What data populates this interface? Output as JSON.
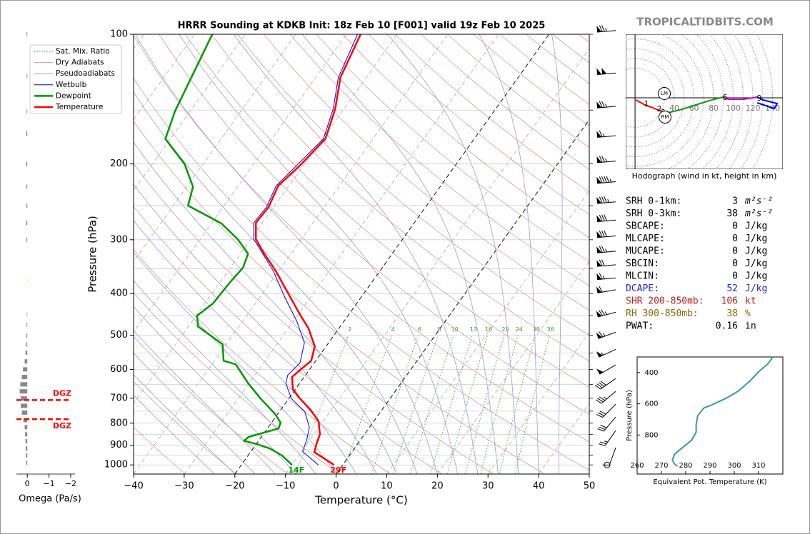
{
  "site": "TROPICALTIDBITS.COM",
  "chart_data": [
    {
      "type": "skewt",
      "title": "HRRR Sounding at KDKB Init: 18z Feb 10 [F001] valid 19z Feb 10 2025",
      "xlabel": "Temperature (°C)",
      "ylabel": "Pressure (hPa)",
      "xlim": [
        -40,
        50
      ],
      "xticks": [
        {
          "value": -40,
          "label": "−40"
        },
        {
          "value": -30,
          "label": "−30"
        },
        {
          "value": -20,
          "label": "−20"
        },
        {
          "value": -10,
          "label": "−10"
        },
        0,
        10,
        20,
        30,
        40,
        50
      ],
      "ylim": [
        1050,
        100
      ],
      "log_y": true,
      "yticks": [
        100,
        200,
        300,
        400,
        500,
        600,
        700,
        800,
        900,
        1000
      ],
      "ygrid": [
        100,
        150,
        200,
        250,
        300,
        350,
        400,
        450,
        500,
        550,
        600,
        650,
        700,
        750,
        800,
        850,
        900,
        950,
        1000
      ],
      "highlight_isotherms": [
        -20,
        0
      ],
      "legend_loc": "upper left",
      "background": [
        {
          "name": "Sat. Mix. Ratio",
          "kind": "mixing_ratio",
          "color": "#2e9e2e",
          "values": [
            2,
            4,
            6,
            8,
            10,
            13,
            16,
            20,
            24,
            30,
            36
          ]
        },
        {
          "name": "Dry Adiabats",
          "kind": "dry",
          "color": "#d99a9a"
        },
        {
          "name": "Pseudoadiabats",
          "kind": "moist",
          "color": "#9a9ad9"
        }
      ],
      "series": [
        {
          "name": "Wetbulb",
          "color": "#0000ff",
          "width": 1,
          "pressure": [
            1000,
            931,
            871,
            817,
            752,
            701,
            647,
            619,
            580,
            520,
            463,
            406,
            355,
            299,
            274,
            252,
            225,
            175,
            149,
            126,
            100
          ],
          "values": [
            -4.8,
            -9.8,
            -10.7,
            -11.9,
            -15.0,
            -19.5,
            -22.7,
            -23.5,
            -22.8,
            -24.8,
            -29.4,
            -35.3,
            -41.0,
            -49.4,
            -51.7,
            -51.4,
            -52.5,
            -49.8,
            -52.1,
            -55.5,
            -57.8
          ]
        },
        {
          "name": "Dewpoint",
          "color": "#009900",
          "width": 2.5,
          "surface_label": "14F",
          "pressure": [
            1000,
            951,
            916,
            895,
            879,
            861,
            823,
            798,
            762,
            701,
            647,
            584,
            573,
            525,
            477,
            450,
            422,
            376,
            348,
            323,
            299,
            275,
            250,
            226,
            200,
            175,
            151,
            100
          ],
          "values": [
            -10.0,
            -13.3,
            -16.7,
            -19.8,
            -22.9,
            -22.5,
            -17.8,
            -18.2,
            -20.5,
            -25.6,
            -30.1,
            -35.3,
            -38.2,
            -40.7,
            -48.1,
            -49.8,
            -48.4,
            -48.0,
            -47.5,
            -48.5,
            -52.6,
            -58.0,
            -67.1,
            -68.8,
            -73.7,
            -81.0,
            -83.0,
            -86.5
          ]
        },
        {
          "name": "Temperature",
          "color": "#ff0000",
          "width": 2.5,
          "surface_label": "29F",
          "pressure": [
            1000,
            934,
            895,
            849,
            792,
            745,
            701,
            667,
            625,
            602,
            573,
            531,
            482,
            447,
            401,
            355,
            323,
            299,
            274,
            252,
            225,
            202,
            175,
            149,
            126,
            100
          ],
          "values": [
            -1.7,
            -7.4,
            -8.1,
            -8.8,
            -10.9,
            -14.1,
            -17.8,
            -20.5,
            -22.4,
            -21.8,
            -20.9,
            -22.2,
            -26.0,
            -29.7,
            -34.8,
            -40.5,
            -45.3,
            -49.0,
            -51.3,
            -51.0,
            -52.1,
            -50.7,
            -49.4,
            -51.7,
            -55.1,
            -57.2
          ]
        }
      ],
      "wind": {
        "pressure": [
          98,
          123,
          147,
          172,
          197,
          220,
          245,
          270,
          294,
          319,
          343,
          368,
          392,
          442,
          492,
          539,
          586,
          630,
          675,
          723,
          774,
          832,
          912,
          1000
        ],
        "speed": [
          75,
          100,
          75,
          65,
          75,
          95,
          85,
          80,
          80,
          75,
          70,
          65,
          60,
          75,
          65,
          55,
          50,
          40,
          35,
          30,
          30,
          25,
          10,
          0
        ],
        "direction": [
          265,
          265,
          265,
          265,
          265,
          265,
          265,
          265,
          265,
          265,
          265,
          265,
          260,
          255,
          250,
          245,
          240,
          235,
          230,
          225,
          220,
          215,
          200,
          0
        ]
      }
    },
    {
      "type": "hodograph",
      "caption": "Hodograph (wind in kt, height in km)",
      "xlim": [
        -9.5,
        150.5
      ],
      "ylim": [
        -72.7,
        64.7
      ],
      "rings": [
        40,
        60,
        80,
        100,
        120,
        140
      ],
      "segments": [
        {
          "color": "#ff0000",
          "u": [
            0.7,
            10.2,
            18.2,
            26.9
          ],
          "v": [
            -2.2,
            -7.3,
            -10.2,
            -13.8
          ]
        },
        {
          "color": "#119911",
          "u": [
            26.9,
            33.5,
            48,
            66.2,
            80.7,
            89.5
          ],
          "v": [
            -13.8,
            -15.3,
            -11.6,
            -5.8,
            -1.5,
            0.7
          ]
        },
        {
          "color": "#cc00cc",
          "u": [
            89.5,
            95.3,
            109.8,
            124.4
          ],
          "v": [
            0.7,
            -1.5,
            -1.5,
            0.7
          ]
        },
        {
          "color": "#0000ff",
          "u": [
            124.4,
            130.2,
            144.7,
            141.8,
            124.4
          ],
          "v": [
            0.7,
            -2.2,
            -5.8,
            -10.9,
            -5.1
          ]
        }
      ],
      "height_labels": {
        "text": [
          "1",
          "2",
          "3",
          "6",
          "9"
        ],
        "u": [
          11.6,
          24.7,
          28.4,
          91.6,
          126.5
        ],
        "v": [
          -6.5,
          -11.6,
          -15.3,
          0,
          -0.7
        ]
      },
      "motions": {
        "text": [
          "LM",
          "RM"
        ],
        "u": [
          29.8,
          30.5
        ],
        "v": [
          4.4,
          -19.6
        ]
      }
    },
    {
      "type": "line",
      "xlabel": "Equivalent Pot. Temperature (K)",
      "ylabel": "Pressure (hPa)",
      "color": "#3a97aa",
      "xlim": [
        260,
        320
      ],
      "xticks": [
        260,
        270,
        280,
        290,
        300,
        310
      ],
      "ylim": [
        1050,
        300
      ],
      "yticks": [
        400,
        600,
        800
      ],
      "x": [
        315.9,
        313.8,
        310.3,
        306.7,
        301.7,
        296.7,
        290.5,
        287.5,
        284.9,
        284.3,
        284.3,
        282.5,
        278.6,
        275.4,
        274.5,
        275.4,
        276.6
      ],
      "values": [
        300,
        345,
        391,
        450,
        518,
        564,
        609,
        627,
        677,
        736,
        782,
        832,
        882,
        923,
        959,
        986,
        1000
      ]
    },
    {
      "type": "omega",
      "xlabel": "Omega (Pa/s)",
      "color": "#888888",
      "negative_color": "#f2f266",
      "xlim": [
        0.5,
        -2.2
      ],
      "xticks": [
        0,
        {
          "value": -1,
          "label": "−1"
        },
        {
          "value": -2,
          "label": "−2"
        }
      ],
      "pressure": [
        100,
        125,
        151,
        170,
        200,
        226,
        250,
        274,
        300,
        373,
        447,
        473,
        501,
        525,
        549,
        575,
        600,
        625,
        650,
        675,
        701,
        729,
        756,
        787,
        817,
        849,
        881,
        916,
        951,
        988
      ],
      "values": [
        0.03,
        0.03,
        0.03,
        0.05,
        0.05,
        0.04,
        0.04,
        0.05,
        0.04,
        -0.03,
        0.02,
        0.03,
        0.04,
        0.05,
        0.08,
        0.12,
        0.2,
        0.25,
        0.32,
        0.35,
        0.3,
        0.3,
        0.25,
        0.18,
        0.12,
        0.1,
        0.08,
        0.07,
        0.06,
        0.05
      ],
      "dgz": {
        "pressure": [
          707,
          783
        ],
        "label": "DGZ",
        "color": "#ff0000"
      }
    }
  ],
  "stats": {
    "rows": [
      {
        "label": "SRH 0-1km:",
        "value": "3",
        "unit": "m²s⁻²"
      },
      {
        "label": "SRH 0-3km:",
        "value": "38",
        "unit": "m²s⁻²"
      },
      {
        "label": "SBCAPE:",
        "value": "0",
        "unit": "J/kg"
      },
      {
        "label": "MLCAPE:",
        "value": "0",
        "unit": "J/kg"
      },
      {
        "label": "MUCAPE:",
        "value": "0",
        "unit": "J/kg"
      },
      {
        "label": "SBCIN:",
        "value": "0",
        "unit": "J/kg"
      },
      {
        "label": "MLCIN:",
        "value": "0",
        "unit": "J/kg"
      },
      {
        "label": "DCAPE:",
        "value": "52",
        "unit": "J/kg",
        "color": "#2222dd"
      },
      {
        "label": "SHR 200-850mb:",
        "value": "106",
        "unit": "kt",
        "color": "#b22222"
      },
      {
        "label": "RH 300-850mb:",
        "value": "38",
        "unit": "%",
        "color": "#8b6508"
      },
      {
        "label": "PWAT:",
        "value": "0.16",
        "unit": "in"
      }
    ]
  }
}
